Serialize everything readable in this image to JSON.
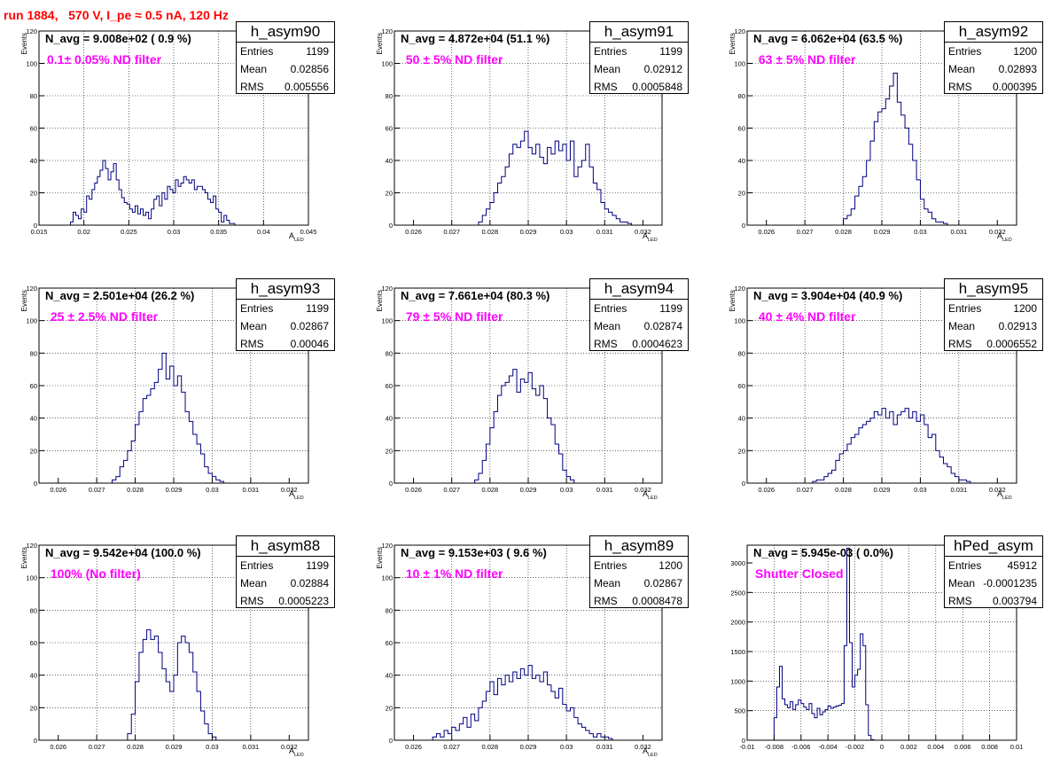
{
  "title": "run 1884,   570 V, I_pe ≈ 0.5 nA, 120 Hz",
  "colors": {
    "title": "#ff0000",
    "hist_line": "#000080",
    "filter_text": "#ff00ff"
  },
  "chart_data": [
    {
      "type": "histogram",
      "name": "h_asym90",
      "annotation": "N_avg = 9.008e+02 ( 0.9 %)",
      "filter_label": "0.1± 0.05% ND filter",
      "stats": [
        [
          "Entries",
          "1199"
        ],
        [
          "Mean",
          "0.02856"
        ],
        [
          "RMS",
          "0.005556"
        ]
      ],
      "ylabel": "Events",
      "xlabel": "A",
      "xlabel_sub": "LED",
      "xlim": [
        0.015,
        0.045
      ],
      "ylim": [
        0,
        120
      ],
      "xticks": [
        0.015,
        0.02,
        0.025,
        0.03,
        0.035,
        0.04,
        0.045
      ],
      "xtick_labels": [
        "0.015",
        "0.02",
        "0.025",
        "0.03",
        "0.035",
        "0.04",
        "0.045"
      ],
      "yticks": [
        0,
        20,
        40,
        60,
        80,
        100,
        120
      ],
      "ytick_labels": [
        "0",
        "20",
        "40",
        "60",
        "80",
        "100",
        "120"
      ],
      "bin_start": 0.0185,
      "bin_width": 0.0003,
      "counts": [
        2,
        8,
        6,
        4,
        10,
        8,
        18,
        16,
        22,
        26,
        30,
        34,
        40,
        35,
        28,
        33,
        38,
        28,
        22,
        17,
        14,
        13,
        10,
        8,
        12,
        7,
        10,
        6,
        8,
        4,
        10,
        16,
        18,
        12,
        20,
        16,
        24,
        22,
        20,
        28,
        24,
        26,
        30,
        28,
        26,
        28,
        22,
        24,
        24,
        22,
        20,
        16,
        14,
        18,
        10,
        8,
        2,
        6,
        3,
        1,
        1
      ]
    },
    {
      "type": "histogram",
      "name": "h_asym91",
      "annotation": "N_avg = 4.872e+04 (51.1 %)",
      "filter_label": " 50 ± 5% ND filter",
      "stats": [
        [
          "Entries",
          "1199"
        ],
        [
          "Mean",
          "0.02912"
        ],
        [
          "RMS",
          "0.0005848"
        ]
      ],
      "ylabel": "Events",
      "xlabel": "A",
      "xlabel_sub": "LED",
      "xlim": [
        0.0255,
        0.0325
      ],
      "ylim": [
        0,
        120
      ],
      "xticks": [
        0.026,
        0.027,
        0.028,
        0.029,
        0.03,
        0.031,
        0.032
      ],
      "xtick_labels": [
        "0.026",
        "0.027",
        "0.028",
        "0.029",
        "0.03",
        "0.031",
        "0.032"
      ],
      "yticks": [
        0,
        20,
        40,
        60,
        80,
        100,
        120
      ],
      "ytick_labels": [
        "0",
        "20",
        "40",
        "60",
        "80",
        "100",
        "120"
      ],
      "bin_start": 0.0277,
      "bin_width": 0.0001,
      "counts": [
        2,
        6,
        10,
        14,
        20,
        26,
        30,
        36,
        44,
        50,
        48,
        52,
        58,
        48,
        44,
        50,
        42,
        38,
        48,
        44,
        52,
        46,
        50,
        40,
        52,
        30,
        36,
        40,
        50,
        36,
        26,
        22,
        14,
        10,
        8,
        6,
        4,
        2,
        2,
        1
      ]
    },
    {
      "type": "histogram",
      "name": "h_asym92",
      "annotation": "N_avg = 6.062e+04 (63.5 %)",
      "filter_label": " 63 ± 5% ND filter",
      "stats": [
        [
          "Entries",
          "1200"
        ],
        [
          "Mean",
          "0.02893"
        ],
        [
          "RMS",
          "0.000395"
        ]
      ],
      "ylabel": "Events",
      "xlabel": "A",
      "xlabel_sub": "LED",
      "xlim": [
        0.0255,
        0.0325
      ],
      "ylim": [
        0,
        120
      ],
      "xticks": [
        0.026,
        0.027,
        0.028,
        0.029,
        0.03,
        0.031,
        0.032
      ],
      "xtick_labels": [
        "0.026",
        "0.027",
        "0.028",
        "0.029",
        "0.03",
        "0.031",
        "0.032"
      ],
      "yticks": [
        0,
        20,
        40,
        60,
        80,
        100,
        120
      ],
      "ytick_labels": [
        "0",
        "20",
        "40",
        "60",
        "80",
        "100",
        "120"
      ],
      "bin_start": 0.028,
      "bin_width": 0.0001,
      "counts": [
        4,
        6,
        10,
        18,
        24,
        30,
        40,
        52,
        64,
        70,
        72,
        78,
        86,
        94,
        76,
        68,
        60,
        50,
        40,
        28,
        16,
        10,
        8,
        4,
        2,
        2,
        1
      ]
    },
    {
      "type": "histogram",
      "name": "h_asym93",
      "annotation": "N_avg = 2.501e+04 (26.2 %)",
      "filter_label": " 25 ± 2.5% ND filter",
      "stats": [
        [
          "Entries",
          "1199"
        ],
        [
          "Mean",
          "0.02867"
        ],
        [
          "RMS",
          "0.00046"
        ]
      ],
      "ylabel": "Events",
      "xlabel": "A",
      "xlabel_sub": "LED",
      "xlim": [
        0.0255,
        0.0325
      ],
      "ylim": [
        0,
        120
      ],
      "xticks": [
        0.026,
        0.027,
        0.028,
        0.029,
        0.03,
        0.031,
        0.032
      ],
      "xtick_labels": [
        "0.026",
        "0.027",
        "0.028",
        "0.029",
        "0.03",
        "0.031",
        "0.032"
      ],
      "yticks": [
        0,
        20,
        40,
        60,
        80,
        100,
        120
      ],
      "ytick_labels": [
        "0",
        "20",
        "40",
        "60",
        "80",
        "100",
        "120"
      ],
      "bin_start": 0.0274,
      "bin_width": 0.0001,
      "counts": [
        2,
        4,
        10,
        14,
        20,
        26,
        36,
        44,
        52,
        54,
        58,
        62,
        70,
        80,
        64,
        72,
        60,
        66,
        56,
        44,
        38,
        30,
        24,
        18,
        10,
        6,
        4,
        2,
        1
      ]
    },
    {
      "type": "histogram",
      "name": "h_asym94",
      "annotation": "N_avg = 7.661e+04 (80.3 %)",
      "filter_label": " 79 ± 5% ND filter",
      "stats": [
        [
          "Entries",
          "1199"
        ],
        [
          "Mean",
          "0.02874"
        ],
        [
          "RMS",
          "0.0004623"
        ]
      ],
      "ylabel": "Events",
      "xlabel": "A",
      "xlabel_sub": "LED",
      "xlim": [
        0.0255,
        0.0325
      ],
      "ylim": [
        0,
        120
      ],
      "xticks": [
        0.026,
        0.027,
        0.028,
        0.029,
        0.03,
        0.031,
        0.032
      ],
      "xtick_labels": [
        "0.026",
        "0.027",
        "0.028",
        "0.029",
        "0.03",
        "0.031",
        "0.032"
      ],
      "yticks": [
        0,
        20,
        40,
        60,
        80,
        100,
        120
      ],
      "ytick_labels": [
        "0",
        "20",
        "40",
        "60",
        "80",
        "100",
        "120"
      ],
      "bin_start": 0.0276,
      "bin_width": 0.0001,
      "counts": [
        2,
        6,
        14,
        24,
        34,
        44,
        54,
        60,
        62,
        66,
        70,
        56,
        64,
        62,
        68,
        58,
        54,
        60,
        52,
        40,
        36,
        24,
        18,
        8,
        4,
        2
      ]
    },
    {
      "type": "histogram",
      "name": "h_asym95",
      "annotation": "N_avg = 3.904e+04 (40.9 %)",
      "filter_label": " 40 ± 4% ND filter",
      "stats": [
        [
          "Entries",
          "1200"
        ],
        [
          "Mean",
          "0.02913"
        ],
        [
          "RMS",
          "0.0006552"
        ]
      ],
      "ylabel": "Events",
      "xlabel": "A",
      "xlabel_sub": "LED",
      "xlim": [
        0.0255,
        0.0325
      ],
      "ylim": [
        0,
        120
      ],
      "xticks": [
        0.026,
        0.027,
        0.028,
        0.029,
        0.03,
        0.031,
        0.032
      ],
      "xtick_labels": [
        "0.026",
        "0.027",
        "0.028",
        "0.029",
        "0.03",
        "0.031",
        "0.032"
      ],
      "yticks": [
        0,
        20,
        40,
        60,
        80,
        100,
        120
      ],
      "ytick_labels": [
        "0",
        "20",
        "40",
        "60",
        "80",
        "100",
        "120"
      ],
      "bin_start": 0.0272,
      "bin_width": 0.0001,
      "counts": [
        1,
        2,
        2,
        4,
        6,
        8,
        14,
        18,
        20,
        24,
        28,
        30,
        34,
        36,
        38,
        40,
        44,
        42,
        46,
        40,
        44,
        36,
        42,
        44,
        46,
        40,
        44,
        38,
        42,
        36,
        28,
        30,
        20,
        16,
        12,
        10,
        6,
        4,
        2,
        2,
        1
      ]
    },
    {
      "type": "histogram",
      "name": "h_asym88",
      "annotation": "N_avg = 9.542e+04 (100.0 %)",
      "filter_label": " 100% (No filter)",
      "stats": [
        [
          "Entries",
          "1199"
        ],
        [
          "Mean",
          "0.02884"
        ],
        [
          "RMS",
          "0.0005223"
        ]
      ],
      "ylabel": "Events",
      "xlabel": "A",
      "xlabel_sub": "LED",
      "xlim": [
        0.0255,
        0.0325
      ],
      "ylim": [
        0,
        120
      ],
      "xticks": [
        0.026,
        0.027,
        0.028,
        0.029,
        0.03,
        0.031,
        0.032
      ],
      "xtick_labels": [
        "0.026",
        "0.027",
        "0.028",
        "0.029",
        "0.03",
        "0.031",
        "0.032"
      ],
      "yticks": [
        0,
        20,
        40,
        60,
        80,
        100,
        120
      ],
      "ytick_labels": [
        "0",
        "20",
        "40",
        "60",
        "80",
        "100",
        "120"
      ],
      "bin_start": 0.0278,
      "bin_width": 0.0001,
      "counts": [
        4,
        16,
        36,
        54,
        62,
        68,
        62,
        64,
        54,
        44,
        36,
        30,
        40,
        60,
        64,
        60,
        54,
        42,
        30,
        18,
        10,
        4,
        2
      ]
    },
    {
      "type": "histogram",
      "name": "h_asym89",
      "annotation": "N_avg = 9.153e+03 ( 9.6 %)",
      "filter_label": " 10 ± 1% ND filter",
      "stats": [
        [
          "Entries",
          "1200"
        ],
        [
          "Mean",
          "0.02867"
        ],
        [
          "RMS",
          "0.0008478"
        ]
      ],
      "ylabel": "Events",
      "xlabel": "A",
      "xlabel_sub": "LED",
      "xlim": [
        0.0255,
        0.0325
      ],
      "ylim": [
        0,
        120
      ],
      "xticks": [
        0.026,
        0.027,
        0.028,
        0.029,
        0.03,
        0.031,
        0.032
      ],
      "xtick_labels": [
        "0.026",
        "0.027",
        "0.028",
        "0.029",
        "0.03",
        "0.031",
        "0.032"
      ],
      "yticks": [
        0,
        20,
        40,
        60,
        80,
        100,
        120
      ],
      "ytick_labels": [
        "0",
        "20",
        "40",
        "60",
        "80",
        "100",
        "120"
      ],
      "bin_start": 0.0265,
      "bin_width": 0.0001,
      "counts": [
        2,
        4,
        2,
        6,
        4,
        8,
        6,
        10,
        14,
        8,
        16,
        12,
        20,
        24,
        30,
        36,
        28,
        38,
        34,
        40,
        36,
        42,
        38,
        44,
        40,
        46,
        38,
        40,
        36,
        42,
        34,
        30,
        26,
        32,
        22,
        18,
        20,
        14,
        10,
        8,
        6,
        4,
        2,
        4,
        2,
        2,
        1
      ]
    },
    {
      "type": "histogram",
      "name": "hPed_asym",
      "annotation": "N_avg = 5.945e-03 ( 0.0%)",
      "filter_label": "Shutter Closed",
      "stats": [
        [
          "Entries",
          "45912"
        ],
        [
          "Mean",
          "-0.0001235"
        ],
        [
          "RMS",
          "0.003794"
        ]
      ],
      "ylabel": "",
      "xlabel": "",
      "xlabel_sub": "",
      "xlim": [
        -0.01,
        0.01
      ],
      "ylim": [
        0,
        3300
      ],
      "xticks": [
        -0.01,
        -0.008,
        -0.006,
        -0.004,
        -0.002,
        0,
        0.002,
        0.004,
        0.006,
        0.008,
        0.01
      ],
      "xtick_labels": [
        "-0.01",
        "-0.008",
        "-0.006",
        "-0.004",
        "-0.002",
        "0",
        "0.002",
        "0.004",
        "0.006",
        "0.008",
        "0.01"
      ],
      "yticks": [
        0,
        500,
        1000,
        1500,
        2000,
        2500,
        3000
      ],
      "ytick_labels": [
        "0",
        "500",
        "1000",
        "1500",
        "2000",
        "2500",
        "3000"
      ],
      "bin_start": -0.008,
      "bin_width": 0.0002,
      "counts": [
        380,
        900,
        1250,
        700,
        600,
        550,
        650,
        520,
        600,
        680,
        620,
        560,
        520,
        620,
        450,
        380,
        540,
        430,
        480,
        520,
        580,
        540,
        560,
        580,
        590,
        620,
        1600,
        3250,
        1650,
        900,
        1100,
        1200,
        1800,
        1600,
        600,
        80,
        10
      ]
    }
  ]
}
